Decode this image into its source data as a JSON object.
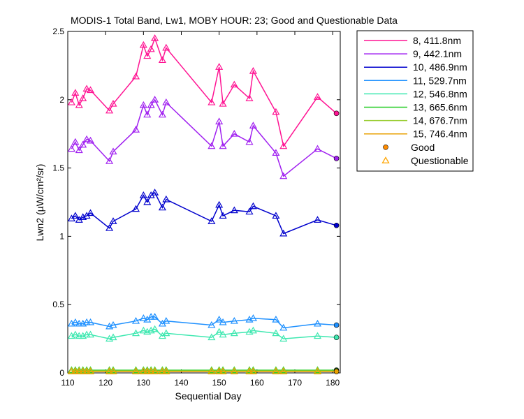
{
  "chart_data": {
    "type": "line",
    "title": "MODIS-1 Total Band, Lw1, MOBY HOUR: 23;  Good and Questionable Data",
    "xlabel": "Sequential Day",
    "ylabel": "Lwn2 (µW/cm²/sr)",
    "xlim": [
      110,
      182
    ],
    "ylim": [
      0,
      2.5
    ],
    "xticks": [
      110,
      120,
      130,
      140,
      150,
      160,
      170,
      180
    ],
    "xtick_labels": [
      "110",
      "120",
      "130",
      "140",
      "150",
      "160",
      "170",
      "180"
    ],
    "yticks": [
      0,
      0.5,
      1,
      1.5,
      2,
      2.5
    ],
    "ytick_labels": [
      "0",
      "0.5",
      "1",
      "1.5",
      "2",
      "2.5"
    ],
    "grid": false,
    "legend_position": "outside-right-top",
    "x": [
      111,
      112,
      113,
      114,
      115,
      116,
      121,
      122,
      128,
      130,
      131,
      132,
      133,
      135,
      136,
      148,
      150,
      151,
      154,
      158,
      159,
      165,
      167,
      176,
      181
    ],
    "series": [
      {
        "name": "8, 411.8nm",
        "color": "#ff1493",
        "values": [
          1.98,
          2.05,
          1.96,
          2.01,
          2.08,
          2.07,
          1.92,
          1.97,
          2.17,
          2.4,
          2.32,
          2.37,
          2.45,
          2.29,
          2.38,
          1.98,
          2.24,
          1.97,
          2.11,
          2.01,
          2.21,
          1.91,
          1.66,
          2.02,
          1.9
        ]
      },
      {
        "name": "9, 442.1nm",
        "color": "#a020f0",
        "values": [
          1.64,
          1.69,
          1.63,
          1.67,
          1.71,
          1.7,
          1.55,
          1.62,
          1.78,
          1.96,
          1.89,
          1.96,
          2.0,
          1.89,
          1.98,
          1.66,
          1.84,
          1.66,
          1.75,
          1.69,
          1.81,
          1.61,
          1.44,
          1.64,
          1.57
        ]
      },
      {
        "name": "10, 486.9nm",
        "color": "#0000cd",
        "values": [
          1.13,
          1.15,
          1.12,
          1.14,
          1.15,
          1.17,
          1.06,
          1.11,
          1.2,
          1.3,
          1.25,
          1.3,
          1.32,
          1.21,
          1.27,
          1.11,
          1.23,
          1.15,
          1.19,
          1.18,
          1.22,
          1.15,
          1.02,
          1.12,
          1.08
        ]
      },
      {
        "name": "11, 529.7nm",
        "color": "#1e90ff",
        "values": [
          0.36,
          0.37,
          0.36,
          0.36,
          0.37,
          0.37,
          0.34,
          0.35,
          0.38,
          0.4,
          0.39,
          0.41,
          0.41,
          0.36,
          0.38,
          0.35,
          0.39,
          0.37,
          0.38,
          0.39,
          0.4,
          0.39,
          0.33,
          0.36,
          0.35
        ]
      },
      {
        "name": "12, 546.8nm",
        "color": "#3ee8b0",
        "values": [
          0.27,
          0.28,
          0.27,
          0.27,
          0.28,
          0.28,
          0.25,
          0.26,
          0.29,
          0.31,
          0.3,
          0.31,
          0.32,
          0.27,
          0.29,
          0.26,
          0.3,
          0.28,
          0.29,
          0.3,
          0.31,
          0.29,
          0.25,
          0.27,
          0.26
        ]
      },
      {
        "name": "13, 665.6nm",
        "color": "#22cc22",
        "values": [
          0.02,
          0.02,
          0.02,
          0.02,
          0.02,
          0.02,
          0.02,
          0.02,
          0.02,
          0.02,
          0.02,
          0.02,
          0.02,
          0.02,
          0.02,
          0.02,
          0.02,
          0.02,
          0.02,
          0.02,
          0.02,
          0.02,
          0.02,
          0.02,
          0.02
        ]
      },
      {
        "name": "14, 676.7nm",
        "color": "#9acd32",
        "values": [
          0.015,
          0.015,
          0.015,
          0.015,
          0.015,
          0.015,
          0.015,
          0.015,
          0.015,
          0.015,
          0.015,
          0.015,
          0.015,
          0.015,
          0.015,
          0.015,
          0.015,
          0.015,
          0.015,
          0.015,
          0.015,
          0.015,
          0.015,
          0.015,
          0.015
        ]
      },
      {
        "name": "15, 746.4nm",
        "color": "#e8a000",
        "values": [
          0.01,
          0.01,
          0.01,
          0.01,
          0.01,
          0.01,
          0.01,
          0.01,
          0.01,
          0.01,
          0.01,
          0.01,
          0.01,
          0.01,
          0.01,
          0.01,
          0.01,
          0.01,
          0.01,
          0.01,
          0.01,
          0.01,
          0.01,
          0.01,
          0.01
        ]
      }
    ],
    "quality": [
      "Q",
      "Q",
      "Q",
      "Q",
      "Q",
      "Q",
      "Q",
      "Q",
      "Q",
      "Q",
      "Q",
      "Q",
      "Q",
      "Q",
      "Q",
      "Q",
      "Q",
      "Q",
      "Q",
      "Q",
      "Q",
      "Q",
      "Q",
      "Q",
      "G"
    ],
    "marker_legend": [
      {
        "label": "Good",
        "marker": "circle",
        "color": "#ff8c00"
      },
      {
        "label": "Questionable",
        "marker": "triangle",
        "color": "#ffa500"
      }
    ]
  }
}
